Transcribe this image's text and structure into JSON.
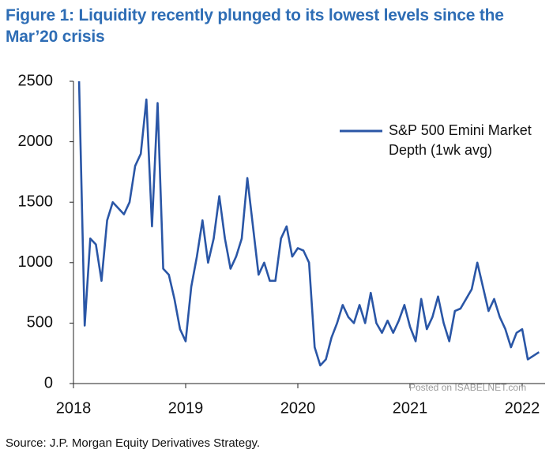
{
  "chart_data": {
    "type": "line",
    "title": "Figure 1: Liquidity recently plunged to its lowest levels since the Mar’20 crisis",
    "source": "Source: J.P. Morgan Equity Derivatives Strategy.",
    "watermark": "Posted on ISABELNET.com",
    "xlim": [
      2018,
      2022.2
    ],
    "xticks": [
      2018,
      2019,
      2020,
      2021,
      2022
    ],
    "ylim": [
      0,
      2500
    ],
    "yticks": [
      0,
      500,
      1000,
      1500,
      2000,
      2500
    ],
    "grid": false,
    "legend": "upper right",
    "x": [
      2018.05,
      2018.1,
      2018.15,
      2018.2,
      2018.25,
      2018.3,
      2018.35,
      2018.4,
      2018.45,
      2018.5,
      2018.55,
      2018.6,
      2018.65,
      2018.7,
      2018.75,
      2018.8,
      2018.85,
      2018.9,
      2018.95,
      2019.0,
      2019.05,
      2019.1,
      2019.15,
      2019.2,
      2019.25,
      2019.3,
      2019.35,
      2019.4,
      2019.45,
      2019.5,
      2019.55,
      2019.6,
      2019.65,
      2019.7,
      2019.75,
      2019.8,
      2019.85,
      2019.9,
      2019.95,
      2020.0,
      2020.05,
      2020.1,
      2020.15,
      2020.2,
      2020.25,
      2020.3,
      2020.35,
      2020.4,
      2020.45,
      2020.5,
      2020.55,
      2020.6,
      2020.65,
      2020.7,
      2020.75,
      2020.8,
      2020.85,
      2020.9,
      2020.95,
      2021.0,
      2021.05,
      2021.1,
      2021.15,
      2021.2,
      2021.25,
      2021.3,
      2021.35,
      2021.4,
      2021.45,
      2021.5,
      2021.55,
      2021.6,
      2021.65,
      2021.7,
      2021.75,
      2021.8,
      2021.85,
      2021.9,
      2021.95,
      2022.0,
      2022.05,
      2022.1,
      2022.15
    ],
    "series": [
      {
        "name": "S&P 500 Emini Market Depth (1wk avg)",
        "color": "#2a56a6",
        "values": [
          2500,
          480,
          1200,
          1150,
          850,
          1350,
          1500,
          1450,
          1400,
          1500,
          1800,
          1900,
          2350,
          1300,
          2320,
          950,
          900,
          700,
          450,
          350,
          800,
          1050,
          1350,
          1000,
          1200,
          1550,
          1200,
          950,
          1050,
          1200,
          1700,
          1300,
          900,
          1000,
          850,
          850,
          1200,
          1300,
          1050,
          1120,
          1100,
          1000,
          300,
          150,
          200,
          380,
          500,
          650,
          550,
          500,
          650,
          500,
          750,
          500,
          420,
          520,
          420,
          520,
          650,
          470,
          350,
          700,
          450,
          550,
          720,
          500,
          350,
          600,
          620,
          700,
          780,
          1000,
          800,
          600,
          700,
          550,
          450,
          300,
          420,
          450,
          200,
          230,
          260
        ]
      }
    ]
  }
}
